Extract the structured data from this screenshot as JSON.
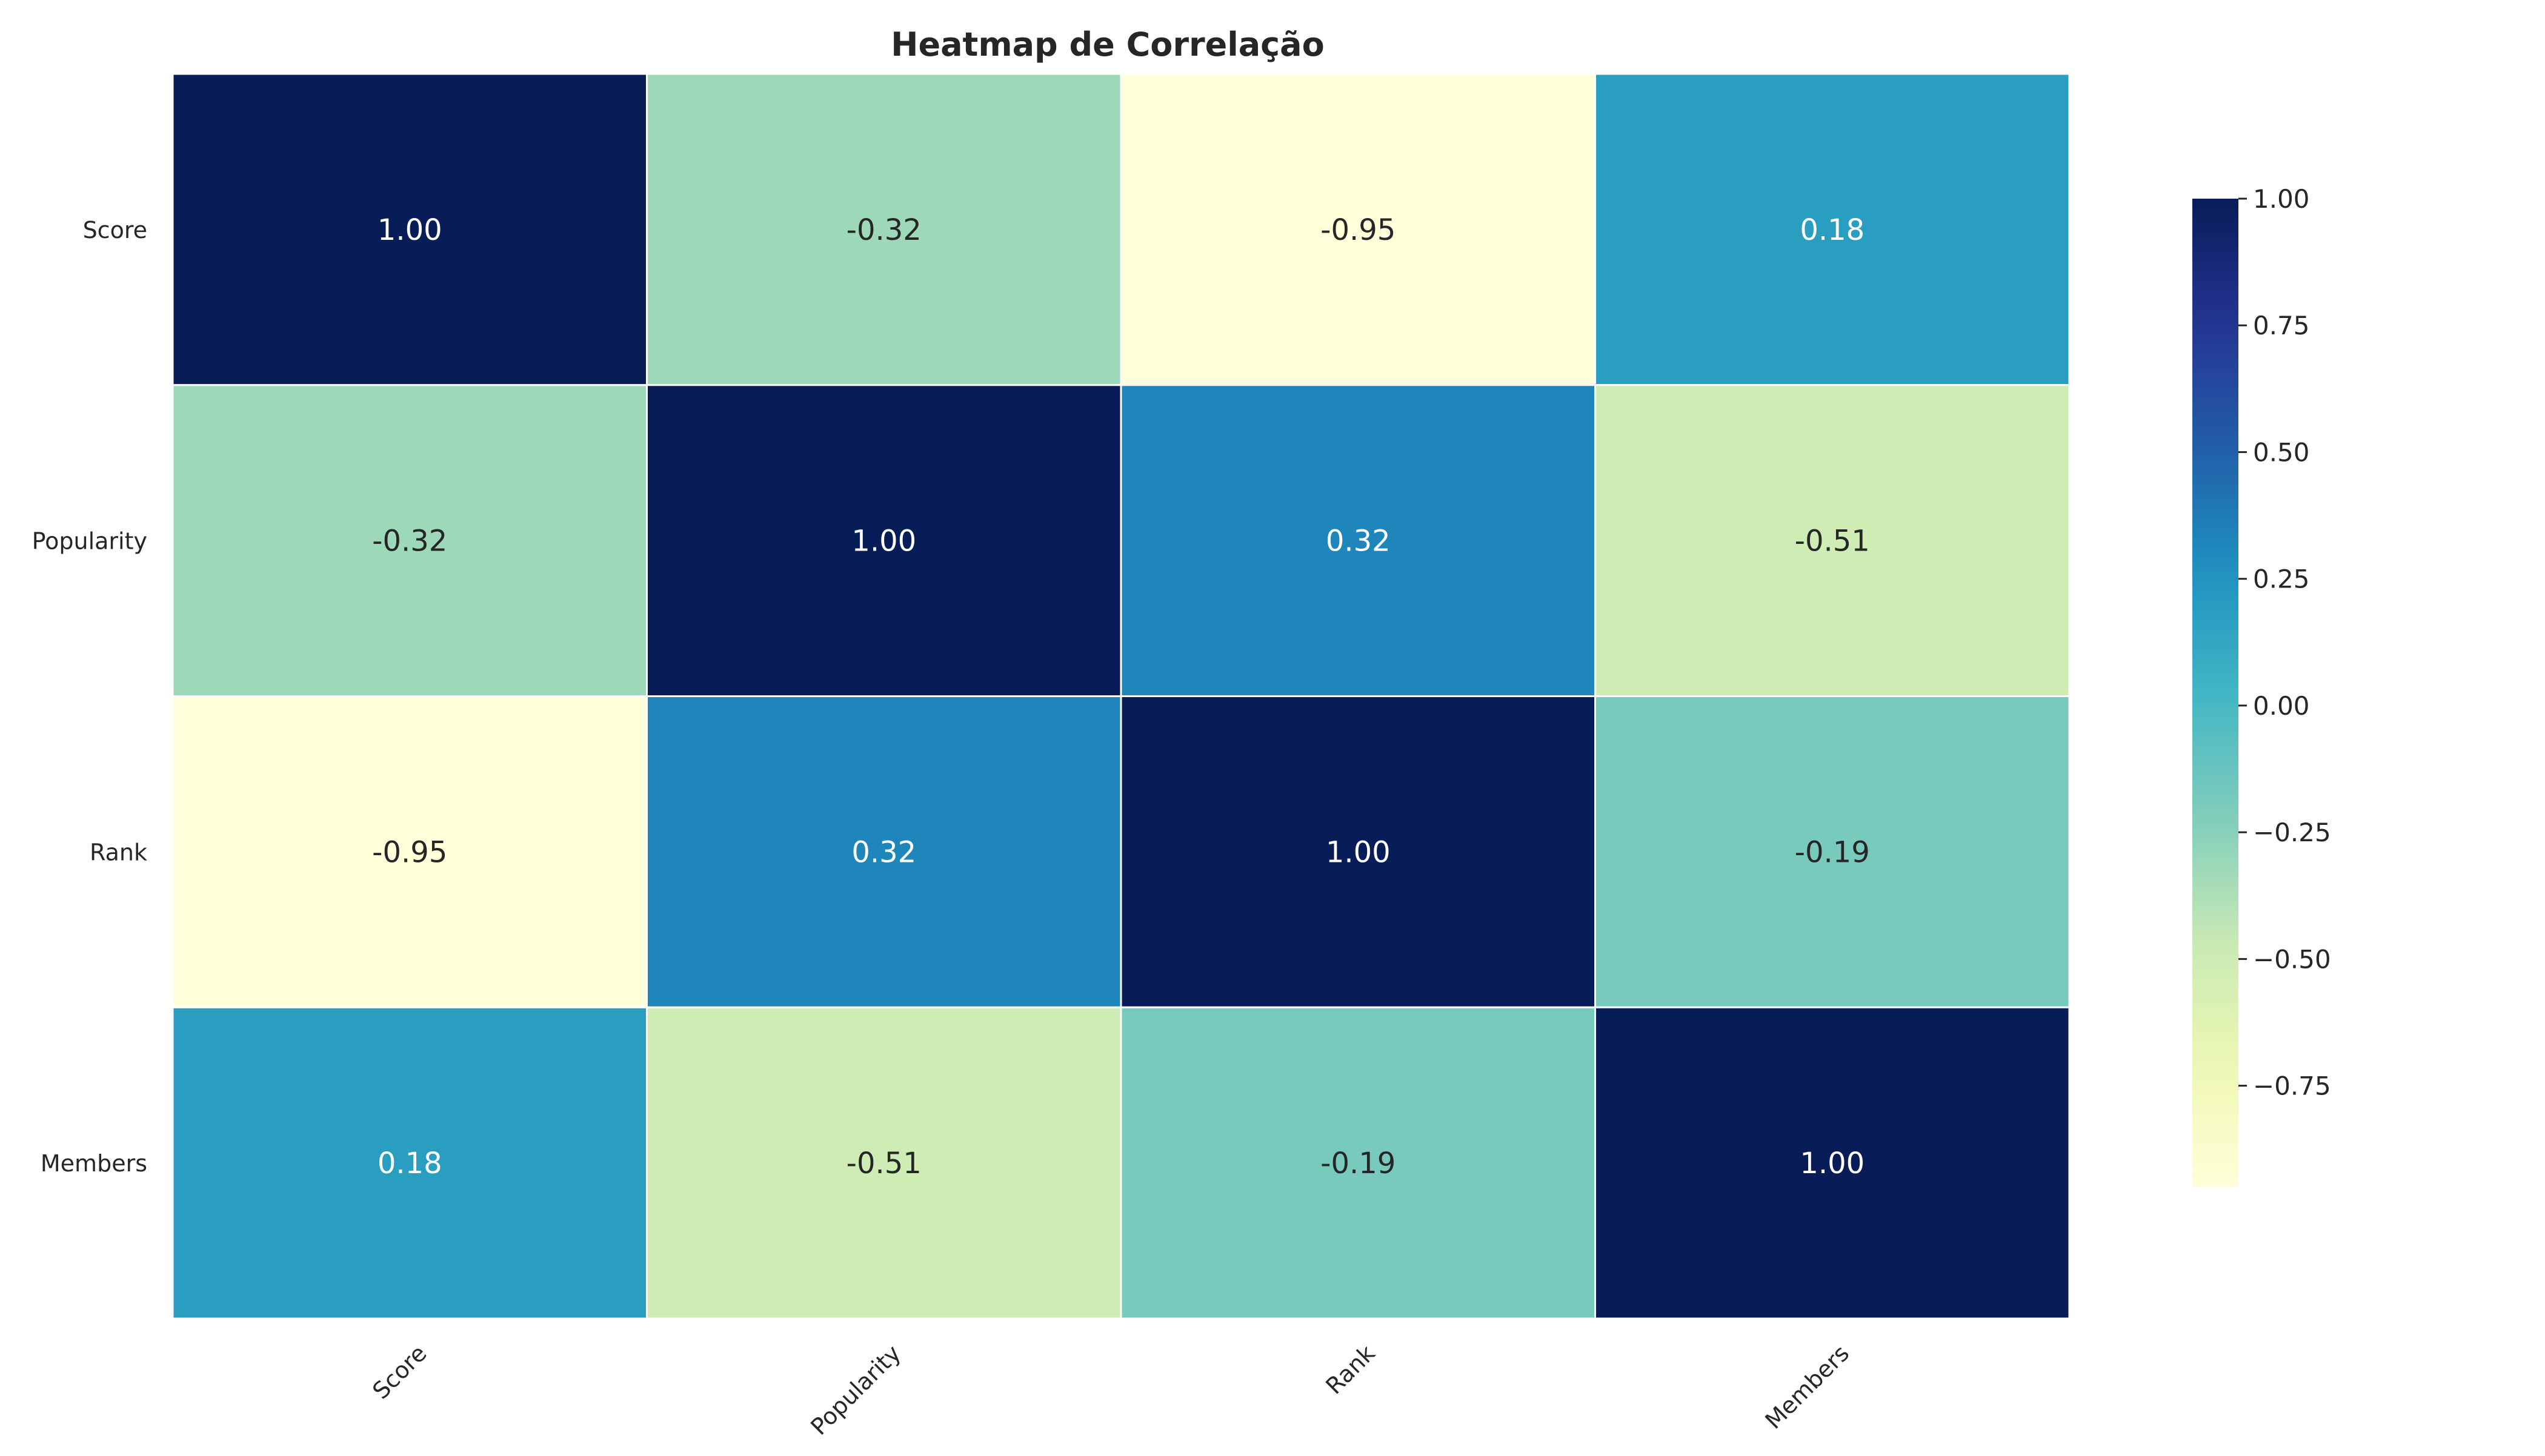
{
  "chart_data": {
    "type": "heatmap",
    "title": "Heatmap de Correlação",
    "xlabel": "",
    "ylabel": "",
    "x_categories": [
      "Score",
      "Popularity",
      "Rank",
      "Members"
    ],
    "y_categories": [
      "Score",
      "Popularity",
      "Rank",
      "Members"
    ],
    "values": [
      [
        1.0,
        -0.32,
        -0.95,
        0.18
      ],
      [
        -0.32,
        1.0,
        0.32,
        -0.51
      ],
      [
        -0.95,
        0.32,
        1.0,
        -0.19
      ],
      [
        0.18,
        -0.51,
        -0.19,
        1.0
      ]
    ],
    "annotation_format": "0.00",
    "colormap": "YlGnBu",
    "vmin": -0.95,
    "vmax": 1.0,
    "colorbar": {
      "ticks": [
        1.0,
        0.75,
        0.5,
        0.25,
        0.0,
        -0.25,
        -0.5,
        -0.75
      ],
      "tick_labels": [
        "1.00",
        "0.75",
        "0.50",
        "0.25",
        "0.00",
        "−0.25",
        "−0.50",
        "−0.75"
      ]
    },
    "grid": false,
    "legend": "colorbar-right",
    "x_tick_rotation": "45"
  },
  "colors": {
    "cell_border": "#ffffff",
    "text_dark": "#262626",
    "text_light": "#ffffff",
    "title": "#262626"
  }
}
